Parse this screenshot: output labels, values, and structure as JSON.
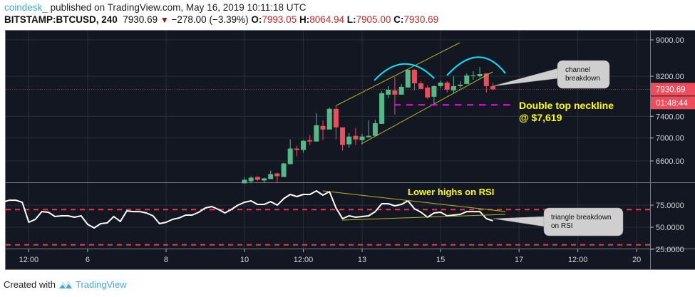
{
  "header": {
    "author": "coindesk_",
    "published": "published on TradingView.com, May 16, 2019 10:11:18 UTC",
    "symbol": "BITSTAMP:BTCUSD, 240",
    "last": "7930.69",
    "change": "−278.00 (−3.39%)",
    "o_label": "O:",
    "o": "7993.05",
    "h_label": "H:",
    "h": "8064.94",
    "l_label": "L:",
    "l": "7905.00",
    "c_label": "C:",
    "c": "7930.69",
    "down_icon": "triangle-down-icon"
  },
  "colors": {
    "background": "#131722",
    "up": "#53b987",
    "down": "#eb4d5c",
    "grid": "#2a2e39",
    "rsi": "#ffffff",
    "rsi_levels": "#f23645",
    "annotation_yellow": "#ffff00",
    "arc": "#00e5ff",
    "neckline": "#ff00ff",
    "channel": "#b5b520"
  },
  "price_axis": {
    "scale": "log",
    "labels": [
      "9000.00",
      "8200.00",
      "7400.00",
      "7000.00",
      "6600.00"
    ],
    "current_price_tag": "7930.69",
    "countdown_tag": "01:48:44"
  },
  "rsi_axis": {
    "labels": [
      "75.0000",
      "50.0000",
      "25.0000"
    ],
    "levels": [
      70,
      30
    ]
  },
  "time_axis": [
    {
      "label": "12:00",
      "t": "05-04 12:00"
    },
    {
      "label": "6",
      "t": "05-06 00:00"
    },
    {
      "label": "8",
      "t": "05-08 00:00"
    },
    {
      "label": "10",
      "t": "05-10 00:00"
    },
    {
      "label": "12:00",
      "t": "05-11 12:00"
    },
    {
      "label": "13",
      "t": "05-13 00:00"
    },
    {
      "label": "15",
      "t": "05-15 00:00"
    },
    {
      "label": "17",
      "t": "05-17 00:00"
    },
    {
      "label": "12:00",
      "t": "05-18 12:00"
    },
    {
      "label": "20",
      "t": "05-20 00:00"
    }
  ],
  "annotations": {
    "neckline_price": 7619,
    "neckline_line1": "Double top neckline",
    "neckline_line2": "@ $7,619",
    "channel_callout": [
      "channel",
      "breakdown"
    ],
    "rsi_title": "Lower highs on RSI",
    "rsi_callout": [
      "triangle breakdown",
      "on RSI"
    ]
  },
  "chart_data": [
    {
      "type": "candlestick",
      "interval": "240",
      "fields": [
        "t",
        "o",
        "h",
        "l",
        "c"
      ],
      "candles": [
        [
          "05-10 00:00",
          6232,
          6335,
          6232,
          6289
        ],
        [
          "05-10 04:00",
          6266,
          6346,
          6232,
          6323
        ],
        [
          "05-10 08:00",
          6335,
          6346,
          6266,
          6289
        ],
        [
          "05-10 12:00",
          6277,
          6323,
          6243,
          6312
        ],
        [
          "05-10 16:00",
          6300,
          6439,
          6300,
          6381
        ],
        [
          "05-10 20:00",
          6392,
          6404,
          6243,
          6346
        ],
        [
          "05-11 00:00",
          6335,
          6570,
          6335,
          6558
        ],
        [
          "05-11 04:00",
          6546,
          6975,
          6546,
          6813
        ],
        [
          "05-11 08:00",
          6813,
          6862,
          6678,
          6788
        ],
        [
          "05-11 12:00",
          6788,
          6962,
          6739,
          6950
        ],
        [
          "05-11 16:00",
          6962,
          7052,
          6875,
          6937
        ],
        [
          "05-11 20:00",
          6937,
          7461,
          6937,
          7232
        ],
        [
          "05-12 00:00",
          7219,
          7324,
          6962,
          7154
        ],
        [
          "05-12 04:00",
          7154,
          7571,
          7154,
          7543
        ],
        [
          "05-12 08:00",
          7543,
          7612,
          6975,
          7193
        ],
        [
          "05-12 12:00",
          7193,
          7193,
          6776,
          6875
        ],
        [
          "05-12 16:00",
          6887,
          7090,
          6825,
          7026
        ],
        [
          "05-12 20:00",
          7039,
          7180,
          6875,
          6975
        ],
        [
          "05-13 00:00",
          6962,
          7077,
          6887,
          7026
        ],
        [
          "05-13 04:00",
          7013,
          7324,
          7013,
          7039
        ],
        [
          "05-13 08:00",
          7039,
          7337,
          7039,
          7271
        ],
        [
          "05-13 12:00",
          7258,
          7894,
          7258,
          7851
        ],
        [
          "05-13 16:00",
          7822,
          7995,
          7752,
          7922
        ],
        [
          "05-13 20:00",
          7908,
          8185,
          7434,
          7822
        ],
        [
          "05-14 00:00",
          7822,
          8038,
          7822,
          7980
        ],
        [
          "05-14 04:00",
          7966,
          8351,
          7966,
          8336
        ],
        [
          "05-14 08:00",
          8336,
          8351,
          7908,
          8053
        ],
        [
          "05-14 12:00",
          8053,
          8097,
          7937,
          7937
        ],
        [
          "05-14 16:00",
          7966,
          8009,
          7738,
          7766
        ],
        [
          "05-14 20:00",
          7780,
          8009,
          7640,
          7995
        ],
        [
          "05-15 00:00",
          7995,
          8111,
          7951,
          8067
        ],
        [
          "05-15 04:00",
          8067,
          8097,
          7865,
          7922
        ],
        [
          "05-15 08:00",
          7908,
          8200,
          7851,
          7995
        ],
        [
          "05-15 12:00",
          7995,
          8097,
          7951,
          8024
        ],
        [
          "05-15 16:00",
          8038,
          8260,
          8038,
          8216
        ],
        [
          "05-15 20:00",
          8200,
          8306,
          8126,
          8216
        ],
        [
          "05-16 00:00",
          8200,
          8397,
          8170,
          8246
        ],
        [
          "05-16 04:00",
          8260,
          8260,
          7865,
          7995
        ],
        [
          "05-16 08:00",
          7993.05,
          8064.94,
          7905.0,
          7930.69
        ]
      ]
    },
    {
      "type": "line",
      "name": "RSI",
      "ylim": [
        25,
        100
      ],
      "points": [
        [
          "05-03 20:00",
          78.2
        ],
        [
          "05-04 00:00",
          80.6
        ],
        [
          "05-04 04:00",
          80.6
        ],
        [
          "05-04 08:00",
          78.2
        ],
        [
          "05-04 12:00",
          55.6
        ],
        [
          "05-04 16:00",
          58.9
        ],
        [
          "05-04 20:00",
          67.7
        ],
        [
          "05-05 00:00",
          66.9
        ],
        [
          "05-05 04:00",
          62.1
        ],
        [
          "05-05 08:00",
          62.9
        ],
        [
          "05-05 12:00",
          62.9
        ],
        [
          "05-05 16:00",
          61.3
        ],
        [
          "05-05 20:00",
          62.9
        ],
        [
          "05-06 00:00",
          53.2
        ],
        [
          "05-06 04:00",
          49.2
        ],
        [
          "05-06 08:00",
          54.0
        ],
        [
          "05-06 12:00",
          54.8
        ],
        [
          "05-06 16:00",
          62.1
        ],
        [
          "05-06 20:00",
          56.5
        ],
        [
          "05-07 00:00",
          68.5
        ],
        [
          "05-07 04:00",
          67.7
        ],
        [
          "05-07 08:00",
          67.7
        ],
        [
          "05-07 12:00",
          66.1
        ],
        [
          "05-07 16:00",
          62.9
        ],
        [
          "05-07 20:00",
          54.0
        ],
        [
          "05-08 00:00",
          55.6
        ],
        [
          "05-08 04:00",
          58.9
        ],
        [
          "05-08 08:00",
          60.5
        ],
        [
          "05-08 12:00",
          63.7
        ],
        [
          "05-08 16:00",
          63.7
        ],
        [
          "05-08 20:00",
          66.9
        ],
        [
          "05-09 00:00",
          71.8
        ],
        [
          "05-09 04:00",
          73.4
        ],
        [
          "05-09 08:00",
          70.2
        ],
        [
          "05-09 12:00",
          66.1
        ],
        [
          "05-09 16:00",
          70.2
        ],
        [
          "05-09 20:00",
          75.0
        ],
        [
          "05-10 00:00",
          78.2
        ],
        [
          "05-10 04:00",
          79.8
        ],
        [
          "05-10 08:00",
          75.8
        ],
        [
          "05-10 12:00",
          75.8
        ],
        [
          "05-10 16:00",
          79.0
        ],
        [
          "05-10 20:00",
          75.0
        ],
        [
          "05-11 00:00",
          82.3
        ],
        [
          "05-11 04:00",
          87.1
        ],
        [
          "05-11 08:00",
          84.7
        ],
        [
          "05-11 12:00",
          87.1
        ],
        [
          "05-11 16:00",
          87.1
        ],
        [
          "05-11 20:00",
          91.1
        ],
        [
          "05-12 00:00",
          86.3
        ],
        [
          "05-12 04:00",
          90.3
        ],
        [
          "05-12 08:00",
          71.8
        ],
        [
          "05-12 12:00",
          59.7
        ],
        [
          "05-12 16:00",
          62.9
        ],
        [
          "05-12 20:00",
          61.3
        ],
        [
          "05-13 00:00",
          62.1
        ],
        [
          "05-13 04:00",
          62.9
        ],
        [
          "05-13 08:00",
          67.7
        ],
        [
          "05-13 12:00",
          76.6
        ],
        [
          "05-13 16:00",
          76.6
        ],
        [
          "05-13 20:00",
          74.2
        ],
        [
          "05-14 00:00",
          75.8
        ],
        [
          "05-14 04:00",
          79.8
        ],
        [
          "05-14 08:00",
          71.0
        ],
        [
          "05-14 12:00",
          66.9
        ],
        [
          "05-14 16:00",
          61.3
        ],
        [
          "05-14 20:00",
          66.1
        ],
        [
          "05-15 00:00",
          66.9
        ],
        [
          "05-15 04:00",
          62.9
        ],
        [
          "05-15 08:00",
          63.7
        ],
        [
          "05-15 12:00",
          64.5
        ],
        [
          "05-15 16:00",
          67.7
        ],
        [
          "05-15 20:00",
          67.7
        ],
        [
          "05-16 00:00",
          67.7
        ],
        [
          "05-16 04:00",
          59.7
        ],
        [
          "05-16 08:00",
          57.3
        ]
      ]
    }
  ],
  "footer": {
    "created_with": "Created with",
    "brand": "TradingView",
    "logo_icon": "tradingview-logo-icon"
  }
}
